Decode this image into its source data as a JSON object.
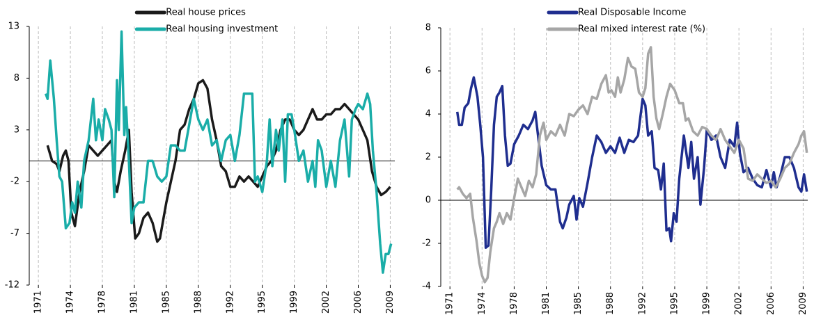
{
  "chart_data": [
    {
      "type": "line",
      "legend": "top",
      "grid": true,
      "xlim": [
        1970,
        2010
      ],
      "ylim": [
        -12,
        13
      ],
      "yticks": [
        -12,
        -7,
        -2,
        3,
        8,
        13
      ],
      "xticks": [
        1971,
        {
          "value": 1974.5,
          "label": "1974"
        },
        1978,
        {
          "value": 1981.5,
          "label": "1981"
        },
        1985,
        {
          "value": 1988.5,
          "label": "1988"
        },
        1992,
        {
          "value": 1995.5,
          "label": "1995"
        },
        1999,
        {
          "value": 2002.5,
          "label": "2002"
        },
        2006,
        {
          "value": 2009.5,
          "label": "2009"
        }
      ],
      "series": [
        {
          "name": "Real house prices",
          "color": "#1a1a1a",
          "x": [
            1972,
            1972.5,
            1973,
            1973.3,
            1973.7,
            1974,
            1974.3,
            1974.6,
            1975,
            1975.5,
            1976,
            1976.5,
            1977,
            1977.5,
            1978,
            1978.5,
            1979,
            1979.3,
            1979.6,
            1980,
            1980.5,
            1980.9,
            1981.2,
            1981.6,
            1982,
            1982.5,
            1983,
            1983.5,
            1984,
            1984.3,
            1984.7,
            1985,
            1985.5,
            1986,
            1986.5,
            1987,
            1987.5,
            1988,
            1988.5,
            1989,
            1989.5,
            1990,
            1990.5,
            1991,
            1991.5,
            1992,
            1992.5,
            1993,
            1993.5,
            1994,
            1994.5,
            1995,
            1995.5,
            1996,
            1996.5,
            1997,
            1997.5,
            1998,
            1998.5,
            1999,
            1999.5,
            2000,
            2000.5,
            2001,
            2001.5,
            2002,
            2002.5,
            2003,
            2003.5,
            2004,
            2004.5,
            2005,
            2005.5,
            2006,
            2006.5,
            2007,
            2007.5,
            2008,
            2008.5,
            2009,
            2009.5
          ],
          "values": [
            1.5,
            0,
            -0.3,
            -1,
            0.5,
            1,
            0,
            -5,
            -6.3,
            -3,
            -1,
            1.5,
            1,
            0.5,
            1,
            1.5,
            2,
            -2,
            -3,
            -1,
            1,
            3,
            -3,
            -7.5,
            -7,
            -5.5,
            -5,
            -6,
            -7.8,
            -7.5,
            -5.5,
            -4,
            -2,
            0,
            3,
            3.5,
            5,
            6,
            7.5,
            7.8,
            7,
            4,
            2,
            -0.5,
            -1,
            -2.5,
            -2.5,
            -1.5,
            -2,
            -1.5,
            -2,
            -2.5,
            -1.5,
            -0.5,
            0,
            1,
            3,
            4,
            4,
            3,
            2.5,
            3,
            4,
            5,
            4,
            4,
            4.5,
            4.5,
            5,
            5,
            5.5,
            5,
            4.5,
            4,
            3,
            2,
            -1,
            -2.5,
            -3.3,
            -3,
            -2.5
          ]
        },
        {
          "name": "Real housing investment",
          "color": "#1aada8",
          "x": [
            1971.8,
            1972,
            1972.3,
            1972.7,
            1973,
            1973.3,
            1973.6,
            1974,
            1974.4,
            1974.7,
            1975,
            1975.3,
            1975.7,
            1976,
            1976.5,
            1977,
            1977.3,
            1977.6,
            1978,
            1978.3,
            1978.7,
            1979,
            1979.3,
            1979.6,
            1979.8,
            1980.1,
            1980.4,
            1980.6,
            1980.9,
            1981.2,
            1981.5,
            1982,
            1982.5,
            1983,
            1983.5,
            1984,
            1984.5,
            1985,
            1985.5,
            1986,
            1986.5,
            1987,
            1987.5,
            1988,
            1988.5,
            1989,
            1989.5,
            1990,
            1990.5,
            1991,
            1991.5,
            1992,
            1992.5,
            1993,
            1993.5,
            1994,
            1994.4,
            1994.7,
            1995,
            1995.5,
            1996,
            1996.3,
            1996.6,
            1997,
            1997.3,
            1997.7,
            1998,
            1998.3,
            1998.7,
            1999,
            1999.5,
            2000,
            2000.5,
            2001,
            2001.3,
            2001.6,
            2002,
            2002.5,
            2003,
            2003.5,
            2004,
            2004.5,
            2005,
            2005.3,
            2005.7,
            2006,
            2006.5,
            2007,
            2007.3,
            2007.6,
            2008,
            2008.4,
            2008.7,
            2009,
            2009.3,
            2009.6
          ],
          "values": [
            6.5,
            6,
            9.7,
            6,
            2,
            -1.5,
            -2,
            -6.5,
            -6,
            -4,
            -5,
            -2,
            -4.5,
            0,
            2,
            6,
            2,
            4,
            2,
            5,
            4,
            3,
            -3.5,
            7.8,
            3,
            12.5,
            2.5,
            5.2,
            0,
            -6,
            -4.5,
            -4,
            -4,
            0,
            0,
            -1.5,
            -2,
            -1.5,
            1.5,
            1.5,
            1,
            1,
            3.5,
            6,
            4,
            3,
            4,
            1.5,
            2,
            0,
            2,
            2.5,
            0,
            2.5,
            6.5,
            6.5,
            6.5,
            -2,
            -1.5,
            -3,
            0,
            4,
            -0.5,
            3,
            1,
            4,
            -2,
            4.5,
            4.5,
            3,
            0,
            1,
            -2,
            0,
            -2.5,
            2,
            1,
            -2.5,
            0,
            -2.5,
            2,
            4,
            -1.5,
            4,
            5,
            5.5,
            5,
            6.5,
            5.5,
            1,
            -3,
            -8,
            -10.8,
            -9,
            -9,
            -8
          ]
        }
      ]
    },
    {
      "type": "line",
      "legend": "top",
      "grid": true,
      "xlim": [
        1970,
        2010
      ],
      "ylim": [
        -4,
        8
      ],
      "yticks": [
        -4,
        -2,
        0,
        2,
        4,
        6,
        8
      ],
      "xticks": [
        1971,
        {
          "value": 1974.5,
          "label": "1974"
        },
        1978,
        {
          "value": 1981.5,
          "label": "1981"
        },
        1985,
        {
          "value": 1988.5,
          "label": "1988"
        },
        1992,
        {
          "value": 1995.5,
          "label": "1995"
        },
        1999,
        {
          "value": 2002.5,
          "label": "2002"
        },
        2006,
        {
          "value": 2009.5,
          "label": "2009"
        }
      ],
      "series": [
        {
          "name": "Real Disposable Income",
          "color": "#1f2e8f",
          "x": [
            1971.8,
            1972,
            1972.3,
            1972.6,
            1973,
            1973.3,
            1973.6,
            1974,
            1974.3,
            1974.6,
            1974.9,
            1975.2,
            1975.5,
            1975.8,
            1976.1,
            1976.4,
            1976.7,
            1977,
            1977.3,
            1977.6,
            1978,
            1978.5,
            1979,
            1979.5,
            1980,
            1980.3,
            1980.6,
            1981,
            1981.5,
            1982,
            1982.5,
            1983,
            1983.3,
            1983.7,
            1984,
            1984.5,
            1984.8,
            1985.1,
            1985.5,
            1986,
            1986.5,
            1987,
            1987.5,
            1988,
            1988.5,
            1989,
            1989.5,
            1990,
            1990.5,
            1991,
            1991.5,
            1992,
            1992.3,
            1992.6,
            1993,
            1993.3,
            1993.7,
            1994,
            1994.3,
            1994.6,
            1994.9,
            1995.1,
            1995.4,
            1995.7,
            1996,
            1996.5,
            1997,
            1997.3,
            1997.6,
            1998,
            1998.3,
            1998.7,
            1999,
            1999.5,
            2000,
            2000.5,
            2001,
            2001.5,
            2002,
            2002.3,
            2002.6,
            2003,
            2003.5,
            2004,
            2004.5,
            2005,
            2005.5,
            2006,
            2006.3,
            2006.6,
            2007,
            2007.5,
            2008,
            2008.5,
            2009,
            2009.3,
            2009.6,
            2009.9
          ],
          "values": [
            4.1,
            3.5,
            3.5,
            4.3,
            4.5,
            5.2,
            5.7,
            4.8,
            3.5,
            2.0,
            -2.2,
            -2.1,
            0.5,
            3.5,
            4.8,
            5.0,
            5.3,
            3.0,
            1.6,
            1.7,
            2.6,
            3.0,
            3.5,
            3.3,
            3.7,
            4.1,
            3.0,
            1.6,
            0.7,
            0.5,
            0.5,
            -1.0,
            -1.3,
            -0.8,
            -0.2,
            0.2,
            -0.9,
            0.1,
            -0.3,
            0.8,
            2.0,
            3.0,
            2.7,
            2.2,
            2.5,
            2.2,
            2.9,
            2.2,
            2.8,
            2.7,
            3.0,
            4.7,
            4.4,
            3.0,
            3.2,
            1.5,
            1.4,
            0.5,
            1.7,
            -1.4,
            -1.3,
            -1.9,
            -0.6,
            -1.0,
            1.0,
            3.0,
            1.5,
            2.7,
            1.0,
            2.0,
            -0.2,
            1.5,
            3.3,
            2.8,
            3.0,
            2.0,
            1.5,
            2.8,
            2.5,
            3.6,
            2.2,
            1.3,
            1.5,
            1.0,
            0.7,
            0.6,
            1.4,
            0.6,
            1.3,
            0.6,
            1.1,
            2.0,
            2.0,
            1.5,
            0.6,
            0.4,
            1.2,
            0.4
          ]
        },
        {
          "name": "Real mixed interest rate (%)",
          "color": "#a6a6a6",
          "x": [
            1971.8,
            1972,
            1972.4,
            1972.8,
            1973.2,
            1973.5,
            1973.9,
            1974.2,
            1974.5,
            1974.8,
            1975.1,
            1975.4,
            1975.8,
            1976.1,
            1976.4,
            1976.8,
            1977.2,
            1977.6,
            1978,
            1978.4,
            1978.8,
            1979.2,
            1979.6,
            1980,
            1980.4,
            1980.8,
            1981.2,
            1981.5,
            1982,
            1982.5,
            1983,
            1983.5,
            1984,
            1984.5,
            1985,
            1985.5,
            1986,
            1986.5,
            1987,
            1987.5,
            1988,
            1988.3,
            1988.6,
            1989,
            1989.3,
            1989.6,
            1990,
            1990.4,
            1990.8,
            1991.2,
            1991.6,
            1992,
            1992.3,
            1992.6,
            1992.9,
            1993.2,
            1993.5,
            1993.8,
            1994.2,
            1994.6,
            1995,
            1995.5,
            1996,
            1996.4,
            1996.7,
            1997,
            1997.5,
            1998,
            1998.5,
            1999,
            1999.5,
            2000,
            2000.5,
            2001,
            2001.5,
            2002,
            2002.5,
            2003,
            2003.5,
            2004,
            2004.5,
            2005,
            2005.5,
            2006,
            2006.5,
            2007,
            2007.5,
            2008,
            2008.5,
            2009,
            2009.3,
            2009.6,
            2009.9
          ],
          "values": [
            0.5,
            0.6,
            0.3,
            0.1,
            0.3,
            -0.8,
            -1.9,
            -2.9,
            -3.5,
            -3.8,
            -3.6,
            -2.4,
            -1.3,
            -1.0,
            -0.6,
            -1.1,
            -0.6,
            -0.9,
            0.1,
            1.0,
            0.6,
            0.2,
            0.9,
            0.6,
            1.2,
            3.0,
            3.6,
            2.8,
            3.2,
            3.0,
            3.5,
            3.0,
            4.0,
            3.9,
            4.2,
            4.4,
            4.0,
            4.8,
            4.7,
            5.4,
            5.8,
            5.0,
            5.1,
            4.8,
            5.7,
            5.0,
            5.6,
            6.6,
            6.2,
            6.1,
            5.0,
            4.8,
            5.2,
            6.8,
            7.1,
            4.8,
            3.8,
            3.3,
            4.0,
            4.8,
            5.4,
            5.1,
            4.5,
            4.5,
            3.7,
            3.8,
            3.2,
            3.0,
            3.4,
            3.3,
            3.0,
            2.8,
            3.3,
            2.8,
            2.5,
            2.2,
            2.8,
            2.4,
            1.0,
            0.9,
            1.2,
            1.0,
            0.8,
            0.9,
            0.6,
            1.0,
            1.5,
            1.7,
            2.2,
            2.6,
            3.0,
            3.2,
            2.2
          ]
        }
      ]
    }
  ]
}
